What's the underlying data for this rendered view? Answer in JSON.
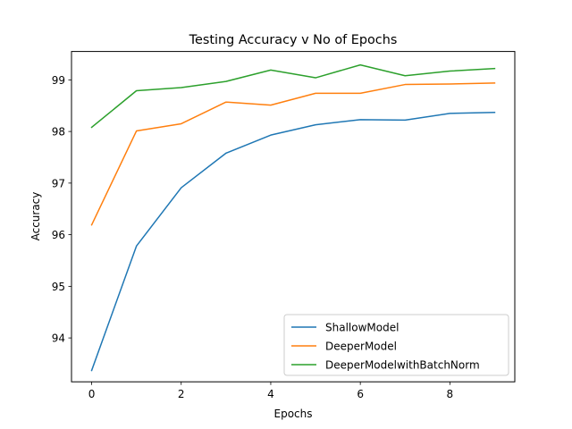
{
  "chart_data": {
    "type": "line",
    "title": "Testing Accuracy v No of Epochs",
    "xlabel": "Epochs",
    "ylabel": "Accuracy",
    "x": [
      0,
      1,
      2,
      3,
      4,
      5,
      6,
      7,
      8,
      9
    ],
    "xlim": [
      -0.45,
      9.45
    ],
    "ylim": [
      93.15,
      99.55
    ],
    "xticks": [
      0,
      2,
      4,
      6,
      8
    ],
    "yticks": [
      94,
      95,
      96,
      97,
      98,
      99
    ],
    "grid": false,
    "legend_position": "lower right",
    "series": [
      {
        "name": "ShallowModel",
        "color": "#1f77b4",
        "values": [
          93.37,
          95.78,
          96.91,
          97.58,
          97.93,
          98.13,
          98.23,
          98.22,
          98.35,
          98.37
        ]
      },
      {
        "name": "DeeperModel",
        "color": "#ff7f0e",
        "values": [
          96.19,
          98.01,
          98.15,
          98.57,
          98.51,
          98.74,
          98.74,
          98.91,
          98.92,
          98.94
        ]
      },
      {
        "name": "DeeperModelwithBatchNorm",
        "color": "#2ca02c",
        "values": [
          98.08,
          98.79,
          98.85,
          98.97,
          99.19,
          99.04,
          99.29,
          99.08,
          99.17,
          99.22
        ]
      }
    ]
  }
}
